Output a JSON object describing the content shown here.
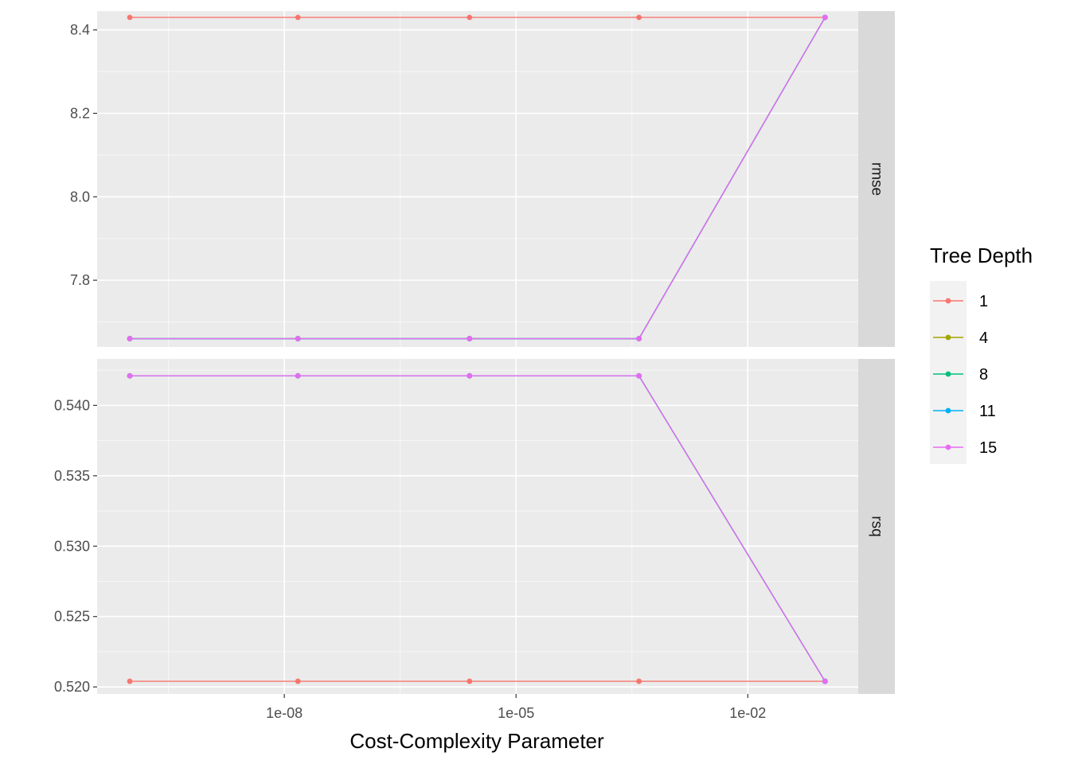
{
  "chart_data": {
    "type": "line",
    "xlabel": "Cost-Complexity Parameter",
    "x_scale": "log10",
    "x_ticks": [
      1e-08,
      1e-05,
      0.01
    ],
    "x_tick_labels": [
      "1e-08",
      "1e-05",
      "1e-02"
    ],
    "x": [
      1e-10,
      1.5e-08,
      2.5e-06,
      0.00039,
      0.1
    ],
    "legend": {
      "title": "Tree Depth",
      "position": "right",
      "entries": [
        {
          "label": "1",
          "color": "#F8766D"
        },
        {
          "label": "4",
          "color": "#A3A500"
        },
        {
          "label": "8",
          "color": "#00BF7D"
        },
        {
          "label": "11",
          "color": "#00B0F6"
        },
        {
          "label": "15",
          "color": "#E76BF3"
        }
      ]
    },
    "panels": [
      {
        "strip": "rmse",
        "ylim": [
          7.64,
          8.445
        ],
        "y_ticks": [
          7.8,
          8.0,
          8.2,
          8.4
        ],
        "y_tick_labels": [
          "7.8",
          "8.0",
          "8.2",
          "8.4"
        ],
        "series": [
          {
            "name": "1",
            "color": "#F8766D",
            "values": [
              8.43,
              8.43,
              8.43,
              8.43,
              8.43
            ]
          },
          {
            "name": "4",
            "color": "#A3A500",
            "values": [
              7.66,
              7.66,
              7.66,
              7.66,
              8.43
            ]
          },
          {
            "name": "8",
            "color": "#00BF7D",
            "values": [
              7.66,
              7.66,
              7.66,
              7.66,
              8.43
            ]
          },
          {
            "name": "11",
            "color": "#00B0F6",
            "values": [
              7.66,
              7.66,
              7.66,
              7.66,
              8.43
            ]
          },
          {
            "name": "15",
            "color": "#E76BF3",
            "values": [
              7.66,
              7.66,
              7.66,
              7.66,
              8.43
            ]
          }
        ]
      },
      {
        "strip": "rsq",
        "ylim": [
          0.5195,
          0.5433
        ],
        "y_ticks": [
          0.52,
          0.525,
          0.53,
          0.535,
          0.54
        ],
        "y_tick_labels": [
          "0.520",
          "0.525",
          "0.530",
          "0.535",
          "0.540"
        ],
        "series": [
          {
            "name": "1",
            "color": "#F8766D",
            "values": [
              0.5204,
              0.5204,
              0.5204,
              0.5204,
              0.5204
            ]
          },
          {
            "name": "4",
            "color": "#A3A500",
            "values": [
              0.5421,
              0.5421,
              0.5421,
              0.5421,
              0.5204
            ]
          },
          {
            "name": "8",
            "color": "#00BF7D",
            "values": [
              0.5421,
              0.5421,
              0.5421,
              0.5421,
              0.5204
            ]
          },
          {
            "name": "11",
            "color": "#00B0F6",
            "values": [
              0.5421,
              0.5421,
              0.5421,
              0.5421,
              0.5204
            ]
          },
          {
            "name": "15",
            "color": "#E76BF3",
            "values": [
              0.5421,
              0.5421,
              0.5421,
              0.5421,
              0.5204
            ]
          }
        ]
      }
    ]
  }
}
